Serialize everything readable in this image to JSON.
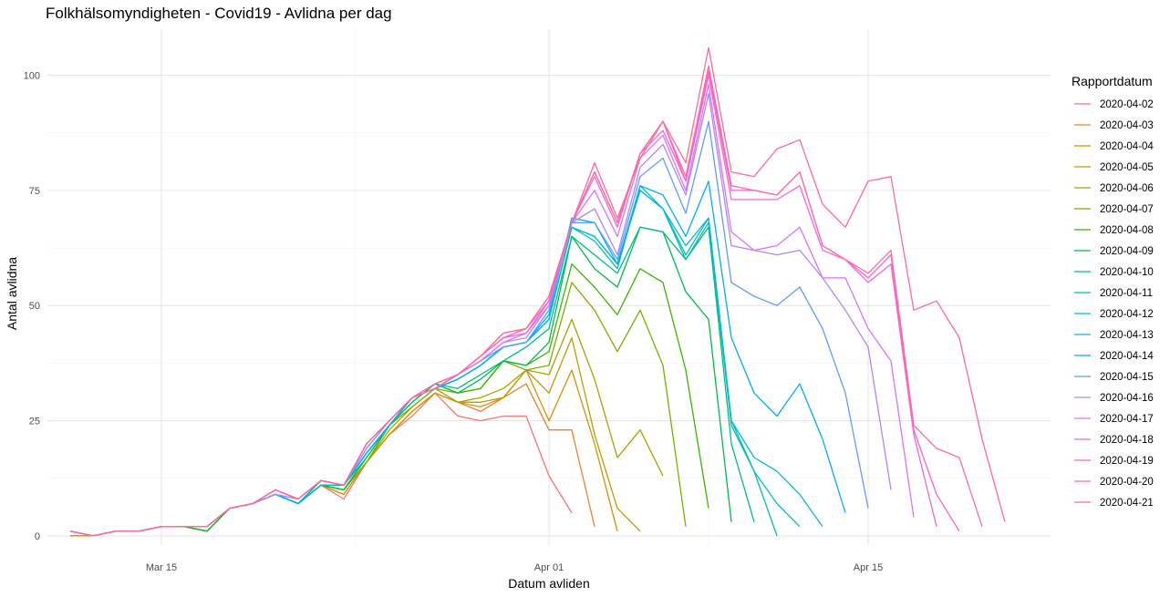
{
  "chart_data": {
    "type": "line",
    "title": "Folkhälsomyndigheten - Covid19 - Avlidna per dag",
    "xlabel": "Datum avliden",
    "ylabel": "Antal avlidna",
    "legend_title": "Rapportdatum",
    "legend_position": "right",
    "grid": true,
    "x_start": "2020-03-11",
    "xlim": [
      "2020-03-10",
      "2020-04-23"
    ],
    "ylim": [
      -2,
      110
    ],
    "x_ticks": [
      {
        "date": "2020-03-15",
        "label": "Mar 15"
      },
      {
        "date": "2020-04-01",
        "label": "Apr 01"
      },
      {
        "date": "2020-04-15",
        "label": "Apr 15"
      }
    ],
    "y_ticks": [
      0,
      25,
      50,
      75,
      100
    ],
    "series": [
      {
        "name": "2020-04-02",
        "color": "#F8766D",
        "values": [
          0,
          0,
          1,
          1,
          2,
          2,
          1,
          6,
          7,
          9,
          7,
          11,
          8,
          16,
          22,
          26,
          31,
          26,
          25,
          26,
          26,
          13,
          5
        ]
      },
      {
        "name": "2020-04-03",
        "color": "#EA8331",
        "values": [
          0,
          0,
          1,
          1,
          2,
          2,
          1,
          6,
          7,
          9,
          7,
          11,
          9,
          16,
          22,
          27,
          31,
          29,
          27,
          30,
          33,
          23,
          23,
          2
        ]
      },
      {
        "name": "2020-04-04",
        "color": "#D89000",
        "values": [
          0,
          0,
          1,
          1,
          2,
          2,
          1,
          6,
          7,
          9,
          7,
          11,
          9,
          16,
          22,
          27,
          31,
          29,
          28,
          30,
          36,
          25,
          36,
          20,
          1
        ]
      },
      {
        "name": "2020-04-05",
        "color": "#C09B00",
        "values": [
          1,
          0,
          1,
          1,
          2,
          2,
          1,
          6,
          7,
          9,
          7,
          11,
          10,
          16,
          22,
          27,
          31,
          29,
          29,
          30,
          36,
          31,
          43,
          22,
          6,
          1
        ]
      },
      {
        "name": "2020-04-06",
        "color": "#A3A500",
        "values": [
          1,
          0,
          1,
          1,
          2,
          2,
          1,
          6,
          7,
          9,
          7,
          11,
          10,
          16,
          23,
          28,
          32,
          29,
          30,
          32,
          36,
          35,
          47,
          34,
          17,
          23,
          13
        ]
      },
      {
        "name": "2020-04-07",
        "color": "#7CAE00",
        "values": [
          1,
          0,
          1,
          1,
          2,
          2,
          1,
          6,
          7,
          9,
          7,
          11,
          10,
          16,
          24,
          28,
          32,
          31,
          32,
          38,
          36,
          37,
          55,
          49,
          40,
          49,
          37,
          2
        ]
      },
      {
        "name": "2020-04-08",
        "color": "#39B600",
        "values": [
          1,
          0,
          1,
          1,
          2,
          2,
          1,
          6,
          7,
          9,
          7,
          11,
          10,
          17,
          24,
          29,
          33,
          31,
          32,
          38,
          37,
          40,
          59,
          54,
          48,
          58,
          55,
          36,
          6
        ]
      },
      {
        "name": "2020-04-09",
        "color": "#00BB4E",
        "values": [
          1,
          0,
          1,
          1,
          2,
          2,
          1,
          6,
          7,
          9,
          7,
          11,
          10,
          17,
          24,
          29,
          33,
          31,
          34,
          38,
          37,
          42,
          65,
          58,
          54,
          67,
          66,
          53,
          47,
          3
        ]
      },
      {
        "name": "2020-04-10",
        "color": "#00BF7D",
        "values": [
          1,
          0,
          1,
          1,
          2,
          2,
          2,
          6,
          7,
          9,
          7,
          11,
          11,
          17,
          24,
          29,
          33,
          32,
          35,
          38,
          41,
          45,
          65,
          61,
          57,
          67,
          66,
          60,
          67,
          20,
          3
        ]
      },
      {
        "name": "2020-04-11",
        "color": "#00C1A3",
        "values": [
          1,
          0,
          1,
          1,
          2,
          2,
          2,
          6,
          7,
          9,
          7,
          11,
          11,
          18,
          24,
          30,
          32,
          34,
          37,
          41,
          42,
          47,
          67,
          64,
          58,
          76,
          71,
          60,
          68,
          24,
          14,
          0
        ]
      },
      {
        "name": "2020-04-12",
        "color": "#00BFC4",
        "values": [
          1,
          0,
          1,
          1,
          2,
          2,
          2,
          6,
          7,
          9,
          7,
          12,
          11,
          18,
          24,
          30,
          32,
          34,
          37,
          41,
          42,
          47,
          67,
          65,
          59,
          75,
          71,
          61,
          69,
          25,
          14,
          7,
          2
        ]
      },
      {
        "name": "2020-04-13",
        "color": "#00B9E3",
        "values": [
          1,
          0,
          1,
          1,
          2,
          2,
          2,
          6,
          7,
          9,
          7,
          12,
          11,
          18,
          24,
          30,
          32,
          34,
          37,
          41,
          42,
          47,
          67,
          65,
          59,
          75,
          71,
          63,
          69,
          25,
          17,
          14,
          9,
          2
        ]
      },
      {
        "name": "2020-04-14",
        "color": "#00ADFA",
        "values": [
          1,
          0,
          1,
          1,
          2,
          2,
          2,
          6,
          7,
          9,
          7,
          12,
          11,
          18,
          24,
          30,
          32,
          34,
          37,
          41,
          42,
          48,
          69,
          68,
          59,
          76,
          74,
          65,
          77,
          43,
          31,
          26,
          33,
          21,
          5
        ]
      },
      {
        "name": "2020-04-15",
        "color": "#619CFF",
        "values": [
          1,
          0,
          1,
          1,
          2,
          2,
          2,
          6,
          7,
          9,
          8,
          12,
          11,
          19,
          25,
          30,
          32,
          35,
          38,
          41,
          42,
          49,
          68,
          68,
          60,
          78,
          82,
          70,
          90,
          55,
          52,
          50,
          54,
          45,
          31,
          6
        ]
      },
      {
        "name": "2020-04-16",
        "color": "#AE87FF",
        "values": [
          1,
          0,
          1,
          1,
          2,
          2,
          2,
          6,
          7,
          9,
          8,
          12,
          11,
          19,
          25,
          30,
          32,
          35,
          38,
          42,
          43,
          50,
          68,
          71,
          61,
          80,
          85,
          74,
          96,
          63,
          62,
          61,
          62,
          56,
          49,
          41,
          10
        ]
      },
      {
        "name": "2020-04-17",
        "color": "#DB72FB",
        "values": [
          1,
          0,
          1,
          1,
          2,
          2,
          2,
          6,
          7,
          10,
          8,
          12,
          11,
          20,
          25,
          30,
          32,
          35,
          38,
          42,
          44,
          50,
          68,
          75,
          65,
          82,
          87,
          75,
          98,
          66,
          62,
          63,
          67,
          56,
          56,
          45,
          38,
          4
        ]
      },
      {
        "name": "2020-04-18",
        "color": "#F564E3",
        "values": [
          1,
          0,
          1,
          1,
          2,
          2,
          2,
          6,
          7,
          10,
          8,
          12,
          11,
          20,
          25,
          30,
          32,
          35,
          39,
          43,
          44,
          51,
          68,
          78,
          67,
          83,
          88,
          77,
          100,
          73,
          73,
          73,
          76,
          62,
          60,
          55,
          59,
          22,
          2
        ]
      },
      {
        "name": "2020-04-19",
        "color": "#FF61C3",
        "values": [
          1,
          0,
          1,
          1,
          2,
          2,
          2,
          6,
          7,
          10,
          8,
          12,
          11,
          20,
          25,
          30,
          32,
          35,
          39,
          43,
          45,
          51,
          68,
          79,
          68,
          83,
          90,
          77,
          101,
          75,
          75,
          74,
          79,
          63,
          60,
          56,
          61,
          23,
          9,
          1
        ]
      },
      {
        "name": "2020-04-20",
        "color": "#FF6C9C",
        "values": [
          1,
          0,
          1,
          1,
          2,
          2,
          2,
          6,
          7,
          10,
          8,
          12,
          11,
          20,
          25,
          30,
          33,
          35,
          39,
          44,
          45,
          52,
          68,
          79,
          68,
          83,
          90,
          78,
          102,
          76,
          75,
          74,
          79,
          63,
          60,
          57,
          62,
          24,
          19,
          17,
          2
        ]
      },
      {
        "name": "2020-04-21",
        "color": "#FF6C91",
        "values": [
          1,
          0,
          1,
          1,
          2,
          2,
          2,
          6,
          7,
          10,
          8,
          12,
          11,
          20,
          25,
          30,
          33,
          35,
          39,
          44,
          45,
          52,
          68,
          81,
          69,
          82,
          90,
          81,
          106,
          79,
          78,
          84,
          86,
          72,
          67,
          77,
          78,
          49,
          51,
          43,
          21,
          3
        ]
      }
    ]
  }
}
